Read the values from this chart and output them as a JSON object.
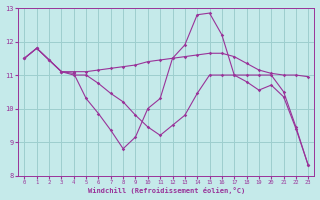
{
  "xlabel": "Windchill (Refroidissement éolien,°C)",
  "background_color": "#c5eaea",
  "grid_color": "#9dcece",
  "line_color": "#993399",
  "xlim": [
    -0.5,
    23.5
  ],
  "ylim": [
    8,
    13
  ],
  "yticks": [
    8,
    9,
    10,
    11,
    12,
    13
  ],
  "xticks": [
    0,
    1,
    2,
    3,
    4,
    5,
    6,
    7,
    8,
    9,
    10,
    11,
    12,
    13,
    14,
    15,
    16,
    17,
    18,
    19,
    20,
    21,
    22,
    23
  ],
  "series": [
    [
      11.5,
      11.8,
      11.45,
      11.1,
      11.1,
      11.1,
      11.15,
      11.2,
      11.25,
      11.3,
      11.4,
      11.45,
      11.5,
      11.55,
      11.6,
      11.65,
      11.65,
      11.55,
      11.35,
      11.15,
      11.05,
      11.0,
      11.0,
      10.95
    ],
    [
      11.5,
      11.8,
      11.45,
      11.1,
      11.05,
      10.3,
      9.85,
      9.35,
      8.8,
      9.15,
      10.0,
      10.3,
      11.5,
      11.9,
      12.8,
      12.85,
      12.2,
      11.0,
      10.8,
      10.55,
      10.7,
      10.35,
      9.4,
      8.3
    ],
    [
      11.5,
      11.8,
      11.45,
      11.1,
      11.0,
      11.0,
      10.75,
      10.45,
      10.2,
      9.8,
      9.45,
      9.2,
      9.5,
      9.8,
      10.45,
      11.0,
      11.0,
      11.0,
      11.0,
      11.0,
      11.0,
      10.5,
      9.45,
      8.3
    ]
  ]
}
